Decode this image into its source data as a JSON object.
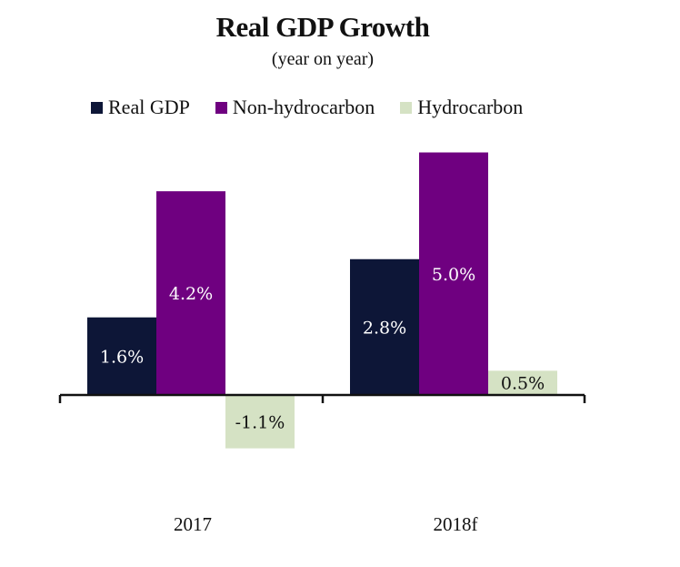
{
  "chart_data": {
    "type": "bar",
    "title": "Real GDP Growth",
    "subtitle": "(year on year)",
    "categories": [
      "2017",
      "2018f"
    ],
    "series": [
      {
        "name": "Real GDP",
        "color": "#0d1637",
        "values": [
          1.6,
          2.8
        ],
        "labels": [
          "1.6%",
          "2.8%"
        ]
      },
      {
        "name": "Non-hydrocarbon",
        "color": "#6f0080",
        "values": [
          4.2,
          5.0
        ],
        "labels": [
          "4.2%",
          "5.0%"
        ]
      },
      {
        "name": "Hydrocarbon",
        "color": "#d5e2c4",
        "values": [
          -1.1,
          0.5
        ],
        "labels": [
          "-1.1%",
          "0.5%"
        ]
      }
    ],
    "xlabel": "",
    "ylabel": "",
    "grid": false,
    "legend_position": "top"
  }
}
